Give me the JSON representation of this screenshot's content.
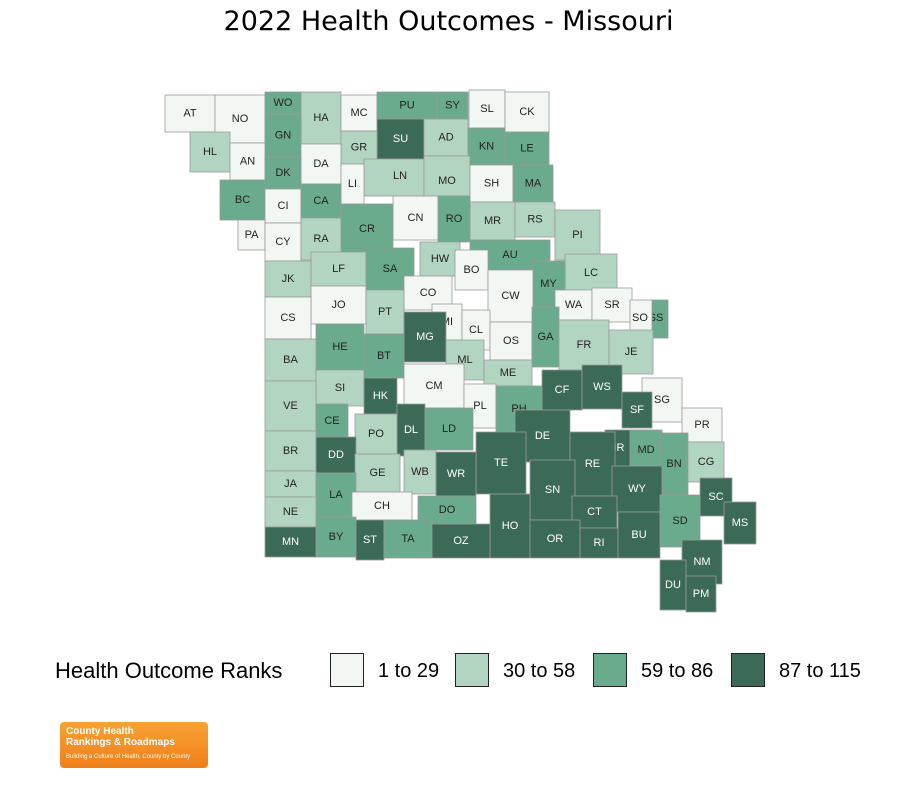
{
  "title": "2022 Health Outcomes - Missouri",
  "legend": {
    "title": "Health Outcome Ranks",
    "items": [
      {
        "label": "1 to 29",
        "color": "#f2f7f4"
      },
      {
        "label": "30 to 58",
        "color": "#b2d5c2"
      },
      {
        "label": "59 to 86",
        "color": "#6aab8d"
      },
      {
        "label": "87 to 115",
        "color": "#3b6b56"
      }
    ]
  },
  "logo": {
    "line1": "County Health",
    "line2": "Rankings & Roadmaps",
    "tagline": "Building a Culture of Health, County by County"
  },
  "counties": [
    {
      "code": "AT",
      "tier": 0
    },
    {
      "code": "NO",
      "tier": 0
    },
    {
      "code": "WO",
      "tier": 2
    },
    {
      "code": "HA",
      "tier": 1
    },
    {
      "code": "MC",
      "tier": 0
    },
    {
      "code": "PU",
      "tier": 2
    },
    {
      "code": "SY",
      "tier": 2
    },
    {
      "code": "SL",
      "tier": 0
    },
    {
      "code": "CK",
      "tier": 0
    },
    {
      "code": "HL",
      "tier": 1
    },
    {
      "code": "GN",
      "tier": 2
    },
    {
      "code": "SU",
      "tier": 3
    },
    {
      "code": "AD",
      "tier": 1
    },
    {
      "code": "KN",
      "tier": 2
    },
    {
      "code": "LE",
      "tier": 2
    },
    {
      "code": "GR",
      "tier": 1
    },
    {
      "code": "AN",
      "tier": 0
    },
    {
      "code": "DA",
      "tier": 0
    },
    {
      "code": "DK",
      "tier": 2
    },
    {
      "code": "LN",
      "tier": 1
    },
    {
      "code": "MO",
      "tier": 1
    },
    {
      "code": "SH",
      "tier": 0
    },
    {
      "code": "MA",
      "tier": 2
    },
    {
      "code": "LI",
      "tier": 0
    },
    {
      "code": "BC",
      "tier": 2
    },
    {
      "code": "CI",
      "tier": 0
    },
    {
      "code": "CA",
      "tier": 2
    },
    {
      "code": "CN",
      "tier": 0
    },
    {
      "code": "MR",
      "tier": 1
    },
    {
      "code": "RS",
      "tier": 1
    },
    {
      "code": "PA",
      "tier": 0
    },
    {
      "code": "CR",
      "tier": 2
    },
    {
      "code": "RO",
      "tier": 2
    },
    {
      "code": "PI",
      "tier": 1
    },
    {
      "code": "CY",
      "tier": 0
    },
    {
      "code": "RA",
      "tier": 1
    },
    {
      "code": "HW",
      "tier": 1
    },
    {
      "code": "AU",
      "tier": 2
    },
    {
      "code": "LF",
      "tier": 1
    },
    {
      "code": "SA",
      "tier": 2
    },
    {
      "code": "BO",
      "tier": 0
    },
    {
      "code": "LC",
      "tier": 1
    },
    {
      "code": "JK",
      "tier": 1
    },
    {
      "code": "MY",
      "tier": 2
    },
    {
      "code": "CO",
      "tier": 0
    },
    {
      "code": "CW",
      "tier": 0
    },
    {
      "code": "WA",
      "tier": 0
    },
    {
      "code": "SR",
      "tier": 0
    },
    {
      "code": "JO",
      "tier": 0
    },
    {
      "code": "PT",
      "tier": 1
    },
    {
      "code": "CS",
      "tier": 0
    },
    {
      "code": "MI",
      "tier": 0
    },
    {
      "code": "SC",
      "tier": 2,
      "alias": "SS"
    },
    {
      "code": "SO",
      "tier": 0
    },
    {
      "code": "CL",
      "tier": 0
    },
    {
      "code": "MG",
      "tier": 3
    },
    {
      "code": "OS",
      "tier": 0
    },
    {
      "code": "HE",
      "tier": 2
    },
    {
      "code": "GA",
      "tier": 2
    },
    {
      "code": "FR",
      "tier": 1
    },
    {
      "code": "BT",
      "tier": 2
    },
    {
      "code": "BA",
      "tier": 1
    },
    {
      "code": "ML",
      "tier": 1
    },
    {
      "code": "JE",
      "tier": 1
    },
    {
      "code": "ME",
      "tier": 1
    },
    {
      "code": "SI",
      "tier": 1
    },
    {
      "code": "CM",
      "tier": 0
    },
    {
      "code": "CF",
      "tier": 3
    },
    {
      "code": "WS",
      "tier": 3
    },
    {
      "code": "HK",
      "tier": 3
    },
    {
      "code": "VE",
      "tier": 1
    },
    {
      "code": "SG",
      "tier": 0
    },
    {
      "code": "SF",
      "tier": 3
    },
    {
      "code": "PL",
      "tier": 0
    },
    {
      "code": "PH",
      "tier": 2
    },
    {
      "code": "PR",
      "tier": 0
    },
    {
      "code": "CE",
      "tier": 2
    },
    {
      "code": "DL",
      "tier": 3
    },
    {
      "code": "PO",
      "tier": 1
    },
    {
      "code": "LD",
      "tier": 2
    },
    {
      "code": "DE",
      "tier": 3
    },
    {
      "code": "IR",
      "tier": 3
    },
    {
      "code": "BR",
      "tier": 1
    },
    {
      "code": "MD",
      "tier": 2
    },
    {
      "code": "DD",
      "tier": 3
    },
    {
      "code": "TE",
      "tier": 3
    },
    {
      "code": "RE",
      "tier": 3
    },
    {
      "code": "BN",
      "tier": 2
    },
    {
      "code": "CG",
      "tier": 1
    },
    {
      "code": "GE",
      "tier": 1
    },
    {
      "code": "WB",
      "tier": 1
    },
    {
      "code": "WR",
      "tier": 3
    },
    {
      "code": "JA",
      "tier": 1
    },
    {
      "code": "SN",
      "tier": 3
    },
    {
      "code": "WY",
      "tier": 3
    },
    {
      "code": "LA",
      "tier": 2
    },
    {
      "code": "SC2",
      "label": "SC",
      "tier": 3
    },
    {
      "code": "CH",
      "tier": 0
    },
    {
      "code": "DO",
      "tier": 2
    },
    {
      "code": "NE",
      "tier": 1
    },
    {
      "code": "CT",
      "tier": 3
    },
    {
      "code": "SD",
      "tier": 2
    },
    {
      "code": "MS",
      "tier": 3
    },
    {
      "code": "HO",
      "tier": 3
    },
    {
      "code": "BY",
      "tier": 2
    },
    {
      "code": "ST",
      "tier": 3
    },
    {
      "code": "OR",
      "tier": 3
    },
    {
      "code": "RI",
      "tier": 3
    },
    {
      "code": "BU",
      "tier": 3
    },
    {
      "code": "MN",
      "tier": 3
    },
    {
      "code": "TA",
      "tier": 2
    },
    {
      "code": "OZ",
      "tier": 3
    },
    {
      "code": "NM",
      "tier": 3
    },
    {
      "code": "DU",
      "tier": 3
    },
    {
      "code": "PM",
      "tier": 3
    }
  ]
}
